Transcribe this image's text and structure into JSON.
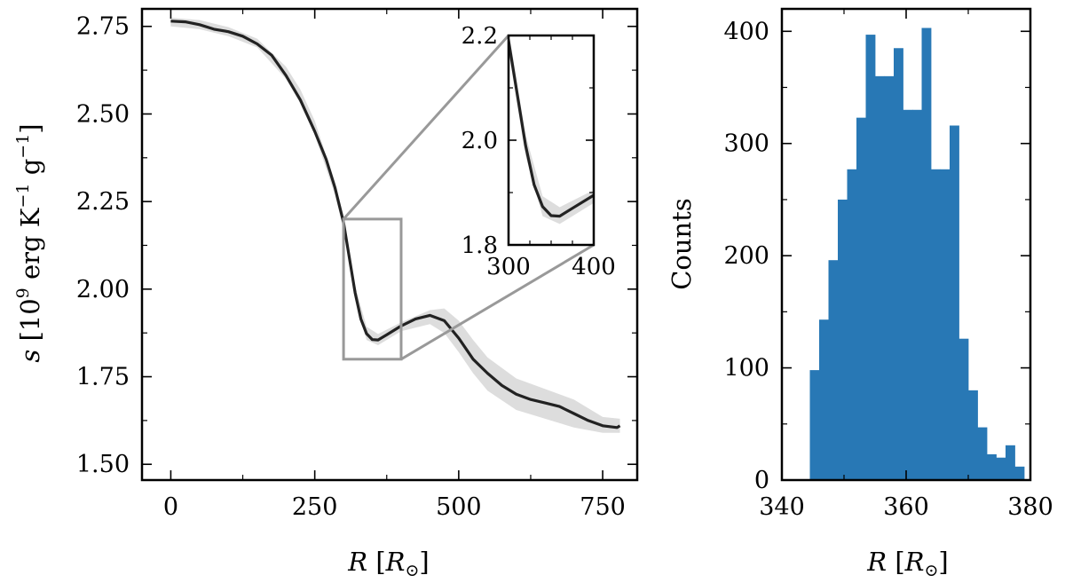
{
  "chart_data": [
    {
      "type": "line",
      "title": "",
      "xlabel": "R [R_sun]",
      "ylabel": "s [10^9 erg K^-1 g^-1]",
      "xlabel_parts": {
        "symbol": "R",
        "unit_open": "[",
        "unit_symbol": "R",
        "unit_subscript": "⊙",
        "unit_close": "]"
      },
      "ylabel_parts": {
        "symbol": "s",
        "pre": "[10",
        "exp1": "9",
        "mid": " erg K",
        "exp2": "−1",
        "post": " g",
        "exp3": "−1",
        "close": "]"
      },
      "xlim": [
        -50,
        810
      ],
      "ylim": [
        1.455,
        2.8
      ],
      "xticks": [
        0,
        250,
        500,
        750
      ],
      "xtick_labels": [
        "0",
        "250",
        "500",
        "750"
      ],
      "yticks": [
        1.5,
        1.75,
        2.0,
        2.25,
        2.5,
        2.75
      ],
      "ytick_labels": [
        "1.50",
        "1.75",
        "2.00",
        "2.25",
        "2.50",
        "2.75"
      ],
      "grid": false,
      "series": [
        {
          "role": "median",
          "color": "#222222",
          "x": [
            0,
            25,
            50,
            75,
            100,
            125,
            150,
            175,
            200,
            225,
            250,
            270,
            285,
            300,
            310,
            320,
            330,
            340,
            350,
            360,
            375,
            400,
            425,
            450,
            475,
            500,
            525,
            550,
            575,
            600,
            625,
            650,
            675,
            700,
            725,
            750,
            775,
            780
          ],
          "y": [
            2.765,
            2.763,
            2.755,
            2.742,
            2.735,
            2.722,
            2.7,
            2.668,
            2.61,
            2.54,
            2.45,
            2.37,
            2.29,
            2.19,
            2.09,
            1.99,
            1.915,
            1.873,
            1.856,
            1.855,
            1.87,
            1.895,
            1.915,
            1.925,
            1.91,
            1.86,
            1.8,
            1.76,
            1.725,
            1.7,
            1.685,
            1.675,
            1.665,
            1.645,
            1.625,
            1.61,
            1.605,
            1.61
          ]
        },
        {
          "role": "uncertainty-band",
          "color": "#dddddd",
          "x": [
            0,
            50,
            100,
            150,
            200,
            225,
            250,
            285,
            300,
            320,
            340,
            360,
            400,
            450,
            475,
            500,
            525,
            550,
            600,
            650,
            700,
            750,
            780
          ],
          "y_low": [
            2.75,
            2.742,
            2.722,
            2.69,
            2.6,
            2.53,
            2.44,
            2.27,
            2.17,
            1.97,
            1.855,
            1.84,
            1.88,
            1.9,
            1.875,
            1.82,
            1.76,
            1.71,
            1.655,
            1.63,
            1.605,
            1.59,
            1.59
          ],
          "y_high": [
            2.775,
            2.768,
            2.748,
            2.715,
            2.635,
            2.57,
            2.48,
            2.305,
            2.21,
            2.01,
            1.893,
            1.872,
            1.905,
            1.94,
            1.945,
            1.91,
            1.855,
            1.805,
            1.745,
            1.715,
            1.685,
            1.635,
            1.63
          ]
        }
      ],
      "zoom_box": {
        "x": [
          300,
          400
        ],
        "y": [
          1.8,
          2.2
        ],
        "color": "#999999"
      },
      "inset": {
        "xlim": [
          300,
          400
        ],
        "ylim": [
          1.8,
          2.2
        ],
        "xticks": [
          300,
          400
        ],
        "xtick_labels": [
          "300",
          "400"
        ],
        "yticks": [
          1.8,
          2.0,
          2.2
        ],
        "ytick_labels": [
          "1.8",
          "2.0",
          "2.2"
        ],
        "x_minor_ticks": [
          325,
          350,
          375
        ],
        "y_minor_ticks": [
          1.9,
          2.1
        ]
      }
    },
    {
      "type": "bar",
      "title": "",
      "xlabel": "R [R_sun]",
      "ylabel": "Counts",
      "xlim": [
        340,
        380
      ],
      "ylim": [
        0,
        420
      ],
      "xticks": [
        340,
        360,
        380
      ],
      "xtick_labels": [
        "340",
        "360",
        "380"
      ],
      "yticks": [
        0,
        100,
        200,
        300,
        400
      ],
      "ytick_labels": [
        "0",
        "100",
        "200",
        "300",
        "400"
      ],
      "grid": false,
      "bar_color": "#2878b5",
      "bin_edges": [
        344.5,
        346.0,
        347.5,
        349.0,
        350.5,
        352.0,
        353.5,
        355.0,
        356.5,
        358.0,
        359.5,
        361.0,
        362.5,
        364.0,
        365.5,
        367.0,
        368.5,
        370.0,
        371.5,
        373.0,
        374.5,
        376.0,
        377.5,
        379.0
      ],
      "values": [
        98,
        143,
        196,
        250,
        277,
        323,
        397,
        360,
        360,
        385,
        330,
        330,
        403,
        277,
        277,
        316,
        126,
        80,
        47,
        23,
        20,
        31,
        12
      ]
    }
  ]
}
